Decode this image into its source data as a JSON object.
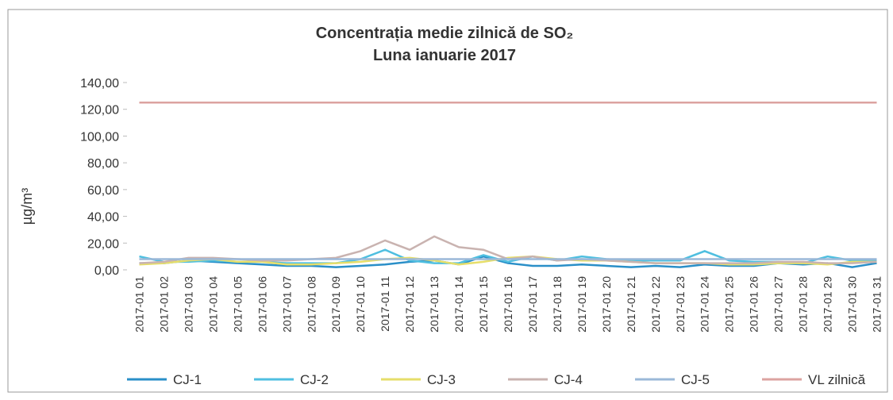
{
  "chart_data": {
    "type": "line",
    "title": "Concentrația medie zilnică de SO₂",
    "subtitle": "Luna ianuarie 2017",
    "ylabel": "µg/m³",
    "categories": [
      "2017-01 01",
      "2017-01 02",
      "2017-01 03",
      "2017-01 04",
      "2017-01 05",
      "2017-01 06",
      "2017-01 07",
      "2017-01 08",
      "2017-01 09",
      "2017-01 10",
      "2017-01 11",
      "2017-01 12",
      "2017-01 13",
      "2017-01 14",
      "2017-01 15",
      "2017-01 16",
      "2017-01 17",
      "2017-01 18",
      "2017-01 19",
      "2017-01 20",
      "2017-01 21",
      "2017-01 22",
      "2017-01 23",
      "2017-01 24",
      "2017-01 25",
      "2017-01 26",
      "2017-01 27",
      "2017-01 28",
      "2017-01 29",
      "2017-01 30",
      "2017-01 31"
    ],
    "series": [
      {
        "name": "CJ-1",
        "color": "#2a8fc8",
        "values": [
          5,
          5,
          7,
          6,
          5,
          4,
          3,
          3,
          2,
          3,
          4,
          6,
          7,
          4,
          10,
          5,
          3,
          3,
          4,
          3,
          2,
          3,
          2,
          4,
          3,
          3,
          5,
          4,
          5,
          2,
          5
        ]
      },
      {
        "name": "CJ-2",
        "color": "#4fbfe0",
        "values": [
          10,
          6,
          6,
          7,
          6,
          6,
          5,
          5,
          5,
          8,
          15,
          7,
          5,
          5,
          11,
          6,
          10,
          7,
          10,
          8,
          7,
          7,
          7,
          14,
          7,
          6,
          6,
          5,
          10,
          7,
          7
        ]
      },
      {
        "name": "CJ-3",
        "color": "#e6de6a",
        "values": [
          4,
          5,
          7,
          8,
          6,
          6,
          4,
          4,
          5,
          6,
          8,
          9,
          7,
          4,
          6,
          9,
          10,
          8,
          7,
          7,
          6,
          5,
          5,
          5,
          4,
          4,
          5,
          5,
          4,
          6,
          6
        ]
      },
      {
        "name": "CJ-4",
        "color": "#c9b3b0",
        "values": [
          5,
          6,
          9,
          9,
          8,
          7,
          7,
          8,
          9,
          14,
          22,
          15,
          25,
          17,
          15,
          8,
          10,
          7,
          8,
          7,
          6,
          5,
          5,
          5,
          5,
          5,
          6,
          6,
          5,
          5,
          6
        ]
      },
      {
        "name": "CJ-5",
        "color": "#9bb8d8",
        "values": [
          8,
          8,
          8,
          8,
          8,
          8,
          8,
          8,
          8,
          8,
          8,
          8,
          8,
          8,
          8,
          8,
          8,
          8,
          8,
          8,
          8,
          8,
          8,
          8,
          8,
          8,
          8,
          8,
          8,
          8,
          8
        ]
      },
      {
        "name": "VL zilnică",
        "color": "#dca3a0",
        "values": [
          125,
          125,
          125,
          125,
          125,
          125,
          125,
          125,
          125,
          125,
          125,
          125,
          125,
          125,
          125,
          125,
          125,
          125,
          125,
          125,
          125,
          125,
          125,
          125,
          125,
          125,
          125,
          125,
          125,
          125,
          125
        ]
      }
    ],
    "ylim": [
      0,
      140
    ],
    "yticks": [
      {
        "value": 0,
        "label": "0,00"
      },
      {
        "value": 20,
        "label": "20,00"
      },
      {
        "value": 40,
        "label": "40,00"
      },
      {
        "value": 60,
        "label": "60,00"
      },
      {
        "value": 80,
        "label": "80,00"
      },
      {
        "value": 100,
        "label": "100,00"
      },
      {
        "value": 120,
        "label": "120,00"
      },
      {
        "value": 140,
        "label": "140,00"
      }
    ],
    "legend": "bottom"
  }
}
